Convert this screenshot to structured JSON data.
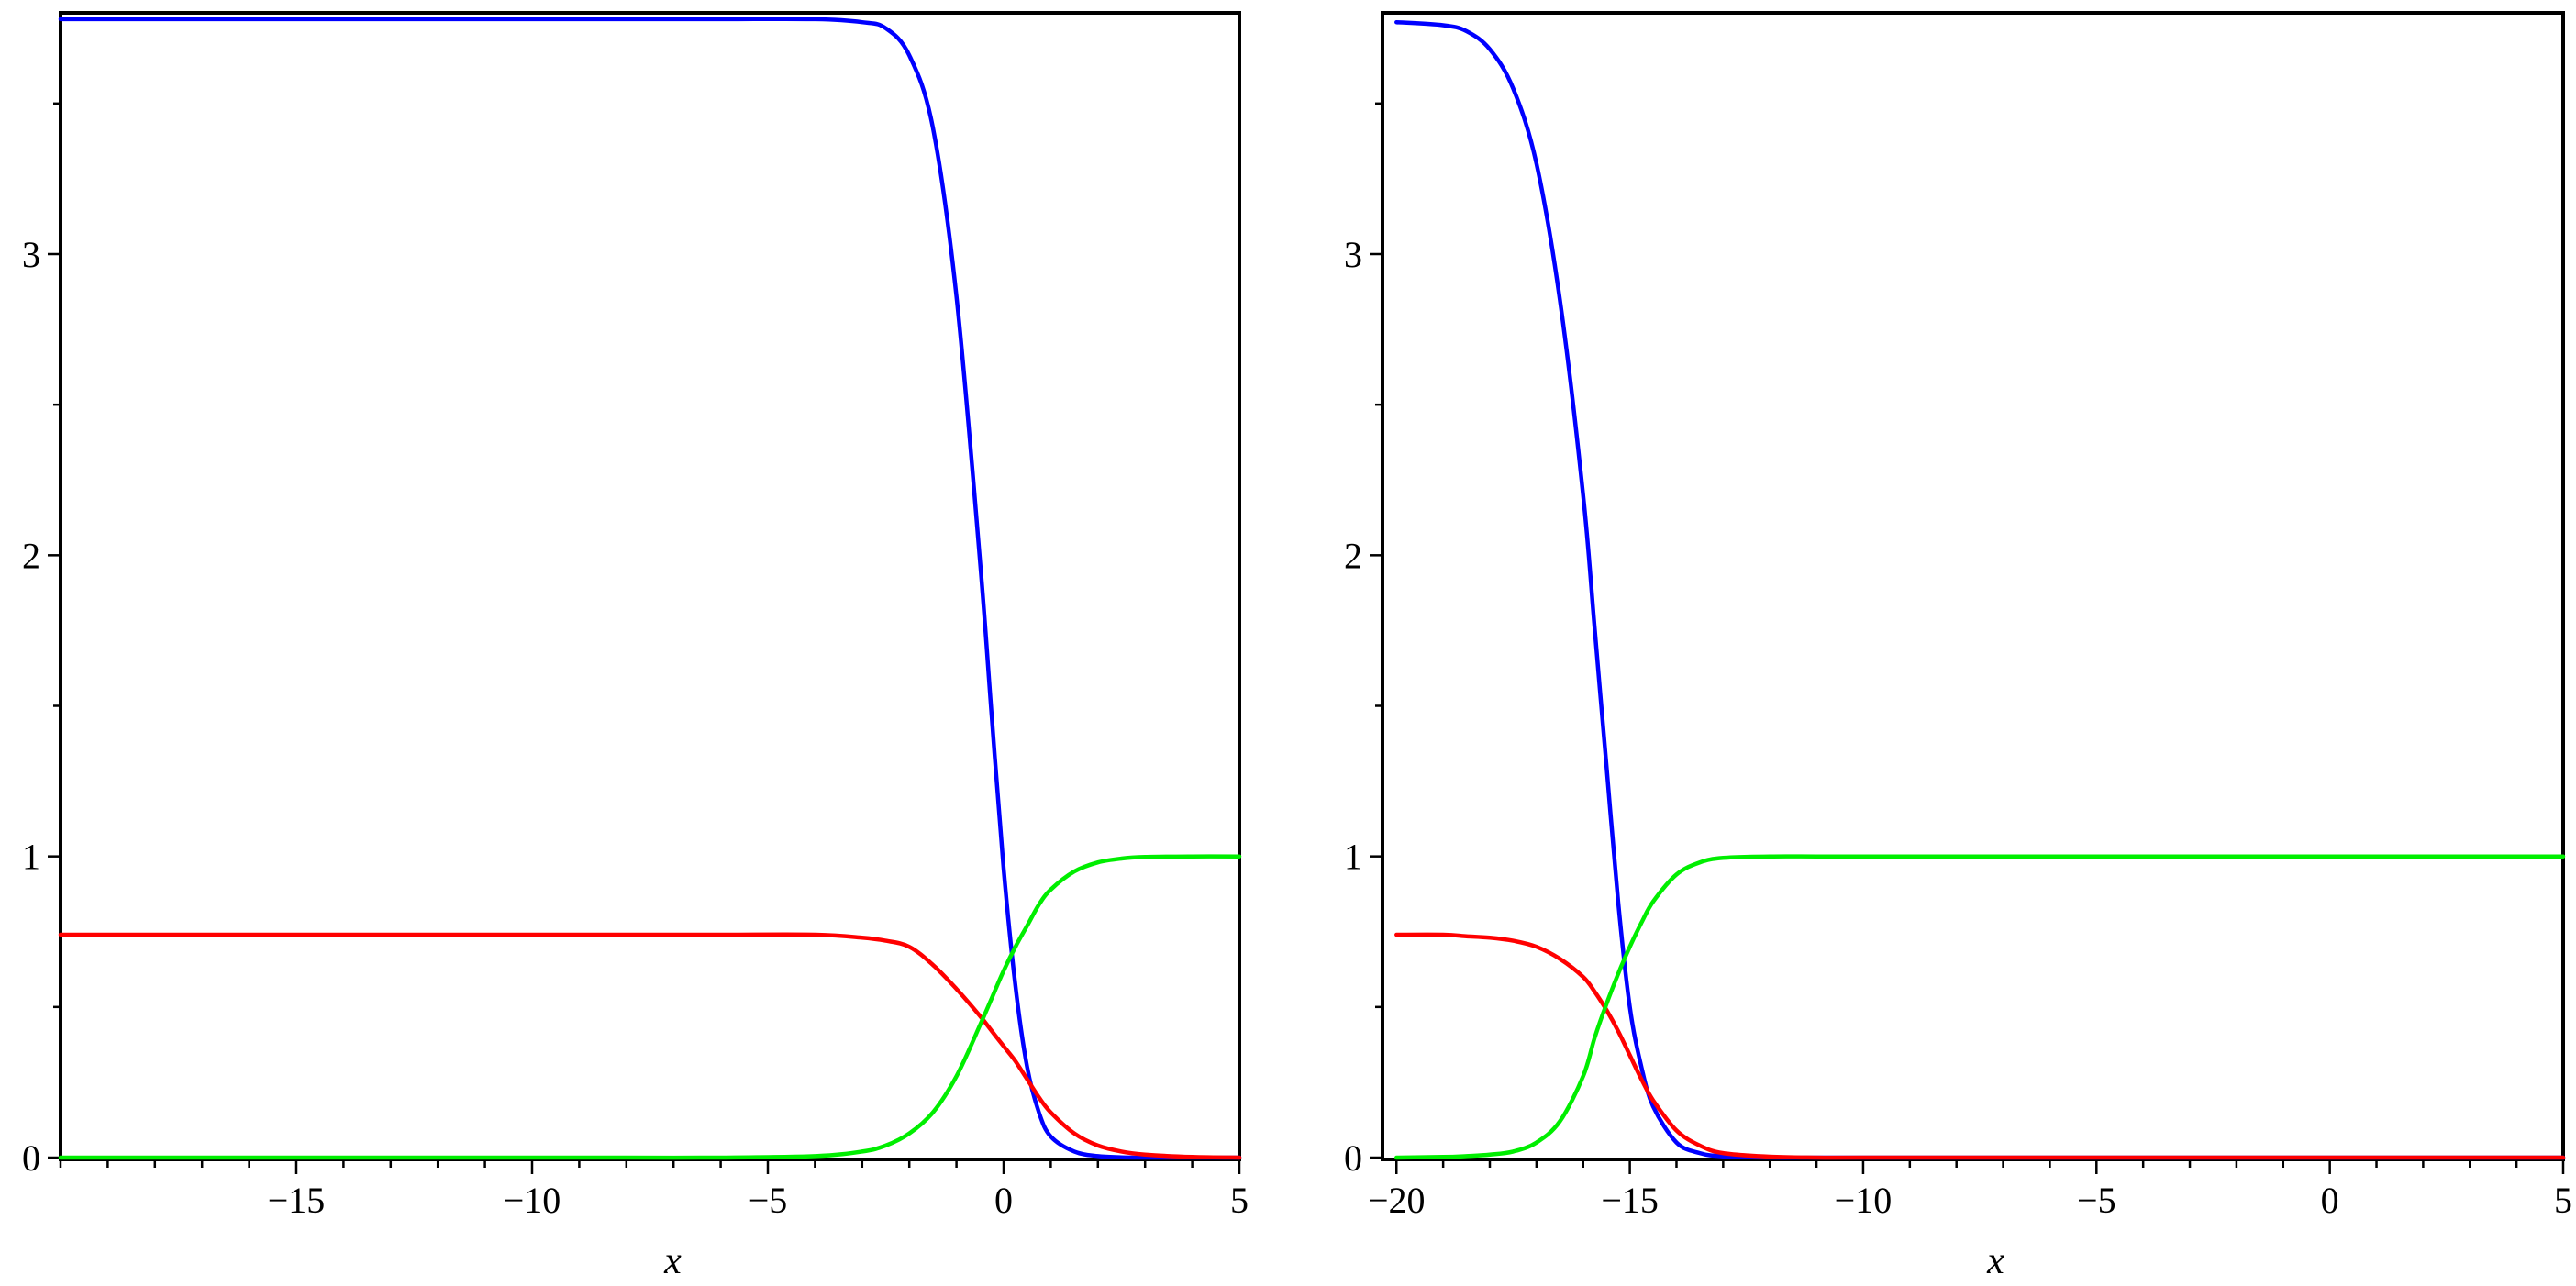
{
  "chart_data": [
    {
      "type": "line",
      "title": "",
      "xlabel": "x",
      "ylabel": "",
      "xlim": [
        -20,
        5
      ],
      "ylim": [
        0,
        3.8
      ],
      "grid": false,
      "x_ticks": [
        -15,
        -10,
        -5,
        0,
        5
      ],
      "x_tick_labels": [
        "−15",
        "−10",
        "−5",
        "0",
        "5"
      ],
      "x_minor_step": 1,
      "y_ticks": [
        0,
        1,
        2,
        3
      ],
      "y_tick_labels": [
        "0",
        "1",
        "2",
        "3"
      ],
      "y_minor_step": 0.5,
      "x": [
        -20,
        -18,
        -16,
        -14,
        -12,
        -10,
        -8,
        -6,
        -4,
        -3,
        -2.5,
        -2,
        -1.5,
        -1,
        -0.5,
        -0.25,
        0,
        0.25,
        0.5,
        0.75,
        1,
        1.5,
        2,
        2.5,
        3,
        4,
        5
      ],
      "series": [
        {
          "color": "#0000ff",
          "values": [
            3.78,
            3.78,
            3.78,
            3.78,
            3.78,
            3.78,
            3.78,
            3.78,
            3.78,
            3.77,
            3.75,
            3.66,
            3.42,
            2.86,
            1.98,
            1.46,
            0.96,
            0.57,
            0.3,
            0.15,
            0.07,
            0.02,
            0.005,
            0.001,
            0,
            0,
            0
          ]
        },
        {
          "color": "#ff0000",
          "values": [
            0.74,
            0.74,
            0.74,
            0.74,
            0.74,
            0.74,
            0.74,
            0.74,
            0.74,
            0.73,
            0.72,
            0.7,
            0.64,
            0.56,
            0.47,
            0.42,
            0.37,
            0.32,
            0.26,
            0.2,
            0.15,
            0.08,
            0.04,
            0.02,
            0.01,
            0.002,
            0
          ]
        },
        {
          "color": "#00ee00",
          "values": [
            0,
            0,
            0,
            0,
            0,
            0,
            0,
            0,
            0.005,
            0.02,
            0.04,
            0.08,
            0.15,
            0.27,
            0.44,
            0.53,
            0.62,
            0.7,
            0.77,
            0.84,
            0.89,
            0.95,
            0.98,
            0.993,
            0.998,
            1.0,
            1.0
          ]
        }
      ]
    },
    {
      "type": "line",
      "title": "",
      "xlabel": "x",
      "ylabel": "",
      "xlim": [
        -20,
        5
      ],
      "ylim": [
        0,
        3.8
      ],
      "grid": false,
      "x_ticks": [
        -20,
        -15,
        -10,
        -5,
        0,
        5
      ],
      "x_tick_labels": [
        "−20",
        "−15",
        "−10",
        "−5",
        "0",
        "5"
      ],
      "x_minor_step": 1,
      "y_ticks": [
        0,
        1,
        2,
        3
      ],
      "y_tick_labels": [
        "0",
        "1",
        "2",
        "3"
      ],
      "y_minor_step": 0.5,
      "x": [
        -20,
        -19,
        -18.5,
        -18,
        -17.5,
        -17,
        -16.5,
        -16,
        -15.75,
        -15.5,
        -15.25,
        -15,
        -14.75,
        -14.5,
        -14,
        -13.5,
        -13,
        -12,
        -11,
        -10,
        -5,
        0,
        5
      ],
      "series": [
        {
          "color": "#0000ff",
          "values": [
            3.77,
            3.76,
            3.74,
            3.68,
            3.55,
            3.3,
            2.85,
            2.2,
            1.75,
            1.3,
            0.85,
            0.5,
            0.3,
            0.17,
            0.05,
            0.015,
            0.004,
            0,
            0,
            0,
            0,
            0,
            0
          ]
        },
        {
          "color": "#ff0000",
          "values": [
            0.74,
            0.74,
            0.735,
            0.73,
            0.72,
            0.7,
            0.66,
            0.6,
            0.55,
            0.49,
            0.42,
            0.34,
            0.26,
            0.19,
            0.09,
            0.04,
            0.015,
            0.003,
            0,
            0,
            0,
            0,
            0
          ]
        },
        {
          "color": "#00ee00",
          "values": [
            0,
            0.002,
            0.005,
            0.01,
            0.02,
            0.05,
            0.12,
            0.27,
            0.4,
            0.51,
            0.61,
            0.7,
            0.78,
            0.85,
            0.94,
            0.98,
            0.995,
            1.0,
            1.0,
            1.0,
            1.0,
            1.0,
            1.0
          ]
        }
      ]
    }
  ]
}
